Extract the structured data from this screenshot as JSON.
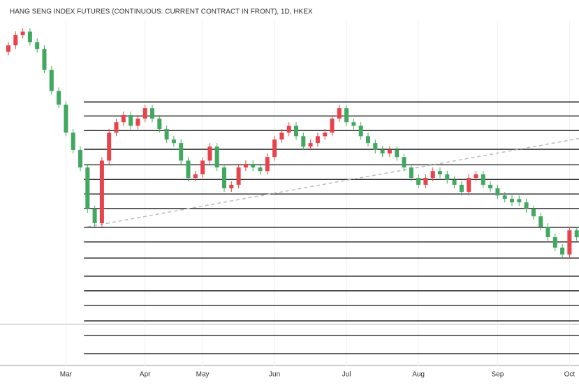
{
  "chart_data": {
    "type": "candlestick",
    "title": "HANG SENG INDEX FUTURES (CONTINUOUS: CURRENT CONTRACT IN FRONT), 1D, HKEX",
    "open": [
      23700,
      23920,
      24270,
      24380,
      24030,
      23800,
      23100,
      22390,
      21930,
      20990,
      20410,
      19820,
      18420,
      17950,
      20050,
      20990,
      21340,
      21580,
      21220,
      21460,
      21810,
      21460,
      21110,
      20760,
      20640,
      20050,
      19470,
      19590,
      20050,
      20520,
      19820,
      19120,
      19240,
      19820,
      19940,
      19820,
      19700,
      20170,
      20760,
      20990,
      21220,
      20870,
      20520,
      20640,
      20870,
      20990,
      21460,
      21810,
      21340,
      21220,
      20870,
      20640,
      20410,
      20290,
      20410,
      20170,
      19820,
      19470,
      19240,
      19470,
      19700,
      19590,
      19400,
      19240,
      19000,
      19470,
      19590,
      19240,
      19120,
      18880,
      18770,
      18760,
      18650,
      18420,
      18180,
      17830,
      17480,
      17130,
      16900,
      17710
    ],
    "high": [
      24040,
      24390,
      24500,
      24500,
      24150,
      23920,
      23220,
      22510,
      22050,
      21110,
      20530,
      19940,
      18540,
      20170,
      21110,
      21460,
      21700,
      21700,
      21580,
      21930,
      21930,
      21580,
      21230,
      20880,
      20760,
      20170,
      19710,
      20170,
      20640,
      20640,
      19940,
      19360,
      19940,
      20060,
      20060,
      19940,
      20290,
      20880,
      21110,
      21340,
      21340,
      20990,
      20760,
      20990,
      21110,
      21580,
      21930,
      21930,
      21460,
      21340,
      20990,
      20760,
      20530,
      20530,
      20530,
      20290,
      19940,
      19590,
      19590,
      19820,
      19820,
      19710,
      19520,
      19360,
      19590,
      19710,
      19710,
      19360,
      19240,
      19000,
      18890,
      18880,
      18770,
      18540,
      18300,
      17950,
      17600,
      17250,
      17830,
      17830
    ],
    "low": [
      23580,
      23800,
      24150,
      23910,
      23680,
      22980,
      22270,
      21810,
      20870,
      20290,
      19700,
      18300,
      17830,
      17830,
      19930,
      20870,
      21220,
      21100,
      21100,
      21340,
      21340,
      20990,
      20640,
      20520,
      19930,
      19350,
      19350,
      19470,
      19930,
      19700,
      19000,
      19000,
      19120,
      19700,
      19700,
      19580,
      19580,
      20050,
      20640,
      20870,
      20750,
      20400,
      20400,
      20520,
      20750,
      20870,
      21340,
      21220,
      21100,
      20750,
      20520,
      20290,
      20170,
      20170,
      20050,
      19700,
      19350,
      19120,
      19120,
      19350,
      19470,
      19280,
      19120,
      18880,
      18880,
      19350,
      19120,
      19000,
      18760,
      18650,
      18530,
      18530,
      18300,
      18060,
      17710,
      17360,
      17010,
      16780,
      16780,
      17360
    ],
    "close": [
      23920,
      24270,
      24380,
      24030,
      23800,
      23100,
      22390,
      21930,
      20990,
      20410,
      19820,
      18420,
      17950,
      20050,
      20990,
      21340,
      21580,
      21220,
      21460,
      21810,
      21460,
      21110,
      20760,
      20640,
      20050,
      19470,
      19590,
      20050,
      20520,
      19820,
      19120,
      19240,
      19820,
      19940,
      19820,
      19700,
      20170,
      20760,
      20990,
      21220,
      20870,
      20520,
      20640,
      20870,
      20990,
      21460,
      21810,
      21340,
      21220,
      20870,
      20640,
      20410,
      20290,
      20410,
      20170,
      19820,
      19470,
      19240,
      19470,
      19700,
      19590,
      19400,
      19240,
      19000,
      19470,
      19590,
      19240,
      19120,
      18880,
      18770,
      18650,
      18650,
      18420,
      18180,
      17830,
      17480,
      17130,
      16900,
      17710,
      17480
    ],
    "up_color": "#e8434a",
    "down_color": "#41a85f",
    "xticks": [
      {
        "value": 8,
        "label": "Mar"
      },
      {
        "value": 19,
        "label": "Apr"
      },
      {
        "value": 27,
        "label": "May"
      },
      {
        "value": 37,
        "label": "Jun"
      },
      {
        "value": 47,
        "label": "Jul"
      },
      {
        "value": 57,
        "label": "Aug"
      },
      {
        "value": 68,
        "label": "Sep"
      },
      {
        "value": 78,
        "label": "Oct"
      }
    ],
    "ylim": [
      13150,
      24740
    ],
    "grid": true,
    "levels": [
      22020,
      21550,
      21060,
      20430,
      19910,
      19420,
      18930,
      18440,
      17810,
      17320,
      16780,
      16170,
      15680,
      15190,
      14670,
      14180,
      13570
    ],
    "levels_from": 11,
    "trendline": {
      "x": [
        11,
        79.5
      ],
      "y": [
        17830,
        20800
      ]
    }
  }
}
